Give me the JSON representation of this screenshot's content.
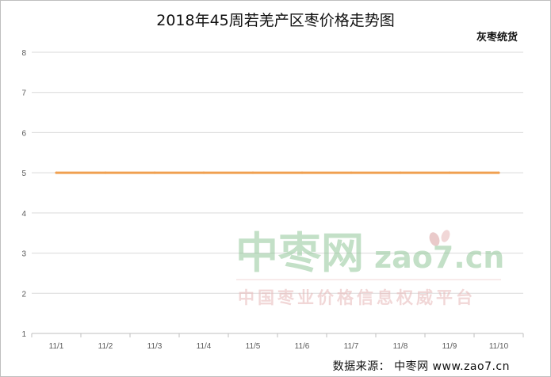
{
  "chart_data": {
    "type": "line",
    "title": "2018年45周若羌产区枣价格走势图",
    "categories": [
      "11/1",
      "11/2",
      "11/3",
      "11/4",
      "11/5",
      "11/6",
      "11/7",
      "11/8",
      "11/9",
      "11/10"
    ],
    "series": [
      {
        "name": "灰枣统货",
        "values": [
          5,
          5,
          5,
          5,
          5,
          5,
          5,
          5,
          5,
          5
        ],
        "color": "#f0a050"
      }
    ],
    "ylim": [
      1,
      8
    ],
    "yticks": [
      1,
      2,
      3,
      4,
      5,
      6,
      7,
      8
    ],
    "grid": true,
    "legend": "top-right"
  },
  "source": "数据来源：  中枣网 www.zao7.cn",
  "watermark": {
    "logo_cn": "中枣网",
    "logo_domain": "zao7.cn",
    "slogan": "中国枣业价格信息权威平台"
  }
}
